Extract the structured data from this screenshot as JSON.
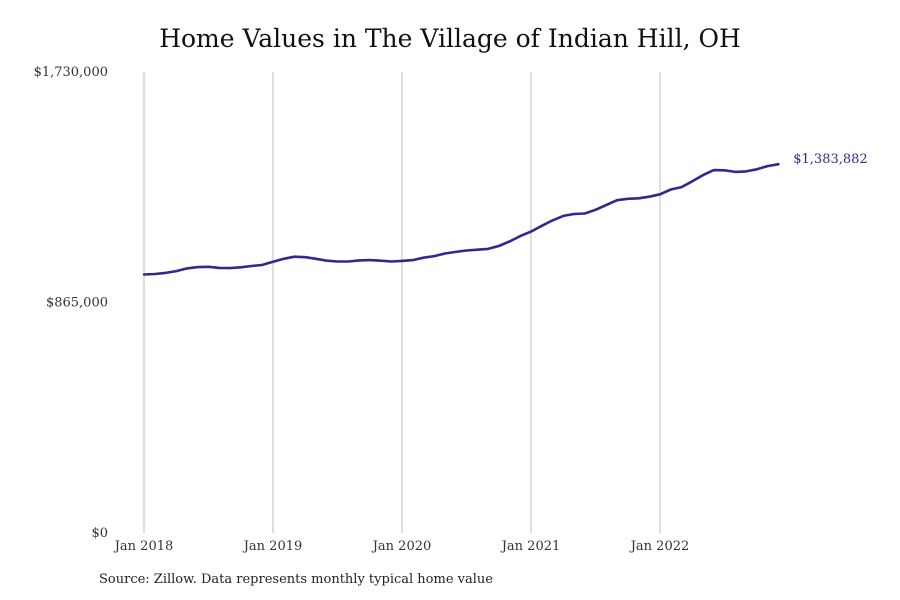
{
  "chart_data": {
    "type": "line",
    "title": "Home Values in The Village of Indian Hill, OH",
    "xlabel": "",
    "ylabel": "",
    "ylim": [
      0,
      1730000
    ],
    "y_ticks": [
      {
        "value": 0,
        "label": "$0"
      },
      {
        "value": 865000,
        "label": "$865,000"
      },
      {
        "value": 1730000,
        "label": "$1,730,000"
      }
    ],
    "x_ticks": [
      "Jan 2018",
      "Jan 2019",
      "Jan 2020",
      "Jan 2021",
      "Jan 2022"
    ],
    "vertical_gridlines": true,
    "line_color": "#2e2b8a",
    "series": [
      {
        "x": [
          "2018-01",
          "2018-02",
          "2018-03",
          "2018-04",
          "2018-05",
          "2018-06",
          "2018-07",
          "2018-08",
          "2018-09",
          "2018-10",
          "2018-11",
          "2018-12",
          "2019-01",
          "2019-02",
          "2019-03",
          "2019-04",
          "2019-05",
          "2019-06",
          "2019-07",
          "2019-08",
          "2019-09",
          "2019-10",
          "2019-11",
          "2019-12",
          "2020-01",
          "2020-02",
          "2020-03",
          "2020-04",
          "2020-05",
          "2020-06",
          "2020-07",
          "2020-08",
          "2020-09",
          "2020-10",
          "2020-11",
          "2020-12",
          "2021-01",
          "2021-02",
          "2021-03",
          "2021-04",
          "2021-05",
          "2021-06",
          "2021-07",
          "2021-08",
          "2021-09",
          "2021-10",
          "2021-11",
          "2021-12",
          "2022-01",
          "2022-02",
          "2022-03",
          "2022-04",
          "2022-05",
          "2022-06",
          "2022-07",
          "2022-08",
          "2022-09",
          "2022-10",
          "2022-11",
          "2022-12"
        ],
        "values": [
          970000,
          972000,
          976000,
          983000,
          993000,
          998000,
          999000,
          995000,
          994000,
          997000,
          1002000,
          1006000,
          1018000,
          1029000,
          1037000,
          1035000,
          1029000,
          1022000,
          1019000,
          1019000,
          1023000,
          1024000,
          1022000,
          1019000,
          1021000,
          1024000,
          1033000,
          1039000,
          1049000,
          1055000,
          1060000,
          1063000,
          1066000,
          1077000,
          1094000,
          1114000,
          1131000,
          1153000,
          1173000,
          1190000,
          1197000,
          1199000,
          1213000,
          1231000,
          1249000,
          1254000,
          1256000,
          1262000,
          1271000,
          1289000,
          1298000,
          1320000,
          1343000,
          1362000,
          1361000,
          1355000,
          1357000,
          1365000,
          1377000,
          1383882
        ]
      }
    ],
    "end_label": "$1,383,882",
    "source": "Source: Zillow. Data represents monthly typical home value"
  }
}
